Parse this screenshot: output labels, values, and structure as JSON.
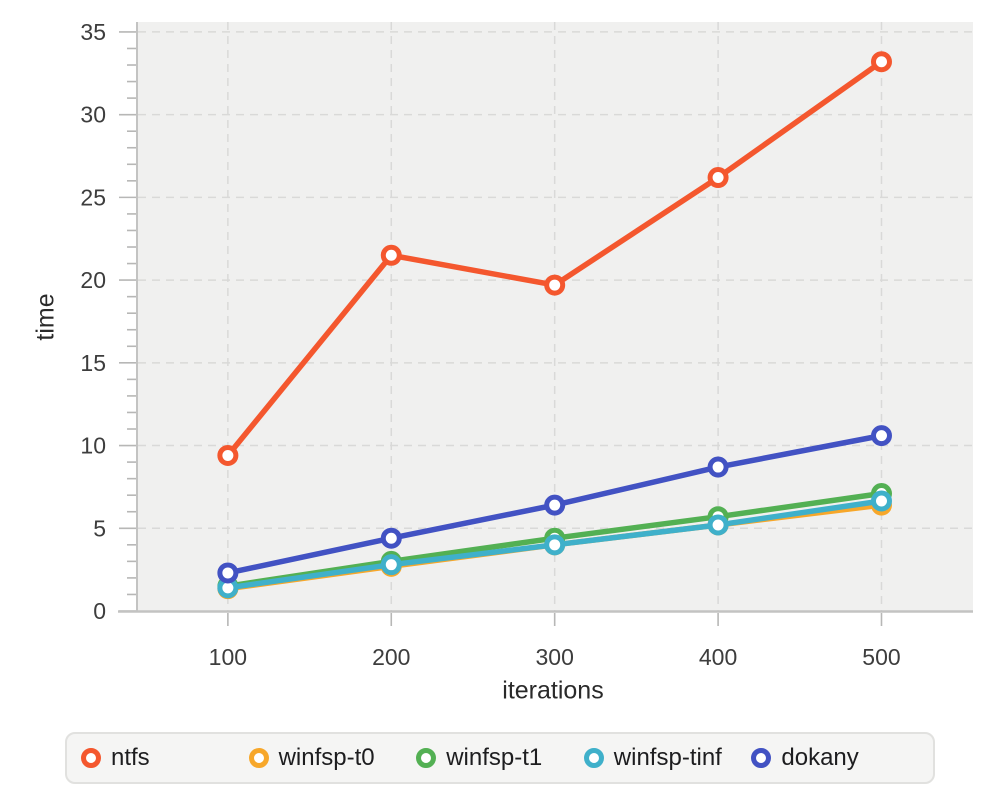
{
  "figure": {
    "background": "#ffffff",
    "plot_background": "#f0f0ef",
    "grid_color": "#d9d9d8",
    "axis_color": "#c3c3c2",
    "tick_color": "#b7b7b6",
    "tick_label_color": "#3d3d3d",
    "axis_title_color": "#2a2a2a",
    "legend": {
      "background": "#f5f5f4",
      "border_color": "#e1e1df",
      "text_color": "#1d1d1f"
    }
  },
  "chart_data": {
    "type": "line",
    "title": "",
    "xlabel": "iterations",
    "ylabel": "time",
    "x": [
      100,
      200,
      300,
      400,
      500
    ],
    "xticks": [
      100,
      200,
      300,
      400,
      500
    ],
    "yticks": [
      0,
      5,
      10,
      15,
      20,
      25,
      30,
      35
    ],
    "y_minor_tick_step": 1,
    "xlim": [
      45,
      556
    ],
    "ylim": [
      0,
      35.6
    ],
    "grid": "dashed-major",
    "legend_position": "bottom",
    "marker_style": "open-circle",
    "series": [
      {
        "name": "ntfs",
        "color": "#f4572e",
        "values": [
          9.4,
          21.5,
          19.7,
          26.2,
          33.2
        ]
      },
      {
        "name": "winfsp-t0",
        "color": "#f7a72a",
        "values": [
          1.35,
          2.7,
          4.0,
          5.2,
          6.4
        ]
      },
      {
        "name": "winfsp-t1",
        "color": "#53b053",
        "values": [
          1.5,
          3.0,
          4.4,
          5.7,
          7.1
        ]
      },
      {
        "name": "winfsp-tinf",
        "color": "#3fb0ca",
        "values": [
          1.4,
          2.8,
          4.0,
          5.2,
          6.65
        ]
      },
      {
        "name": "dokany",
        "color": "#4252c3",
        "values": [
          2.3,
          4.4,
          6.4,
          8.7,
          10.6
        ]
      }
    ]
  }
}
